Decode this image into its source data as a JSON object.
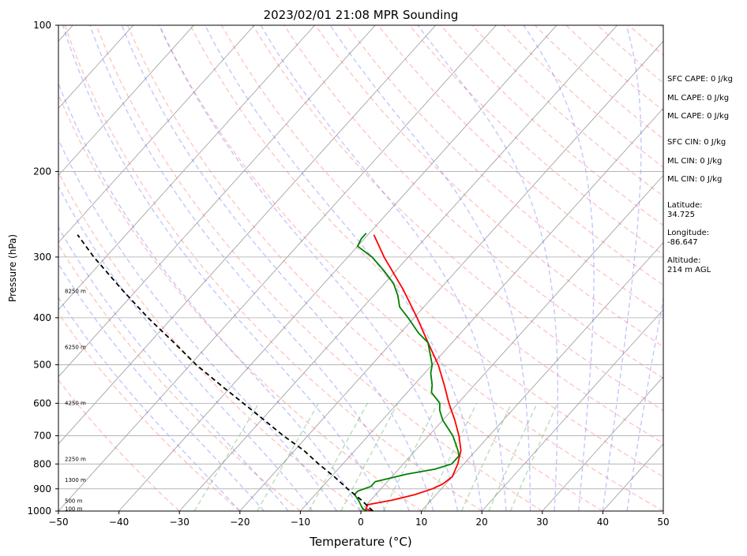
{
  "chart_data": {
    "type": "line",
    "title": "2023/02/01 21:08 MPR Sounding",
    "xlabel": "Temperature (°C)",
    "ylabel": "Pressure (hPa)",
    "xlim": [
      -50,
      50
    ],
    "ylim": [
      1000,
      100
    ],
    "y_scale": "log",
    "x_ticks": [
      -50,
      -40,
      -30,
      -20,
      -10,
      0,
      10,
      20,
      30,
      40,
      50
    ],
    "y_ticks": [
      100,
      200,
      300,
      400,
      500,
      600,
      700,
      800,
      900,
      1000
    ],
    "grid": true,
    "skew_t": true,
    "height_labels": [
      {
        "pressure": 353,
        "label": "8250 m"
      },
      {
        "pressure": 460,
        "label": "6250 m"
      },
      {
        "pressure": 600,
        "label": "4250 m"
      },
      {
        "pressure": 783,
        "label": "2250 m"
      },
      {
        "pressure": 865,
        "label": "1300 m"
      },
      {
        "pressure": 955,
        "label": "500 m"
      },
      {
        "pressure": 990,
        "label": "100 m"
      }
    ],
    "series": [
      {
        "kind": "temperature",
        "color": "#ff0000",
        "points": [
          [
            1000,
            2.0
          ],
          [
            990,
            0.5
          ],
          [
            970,
            0.2
          ],
          [
            950,
            3.5
          ],
          [
            925,
            6.5
          ],
          [
            900,
            8.5
          ],
          [
            880,
            9.5
          ],
          [
            850,
            10.0
          ],
          [
            800,
            9.0
          ],
          [
            750,
            7.5
          ],
          [
            700,
            5.0
          ],
          [
            650,
            2.0
          ],
          [
            600,
            -1.5
          ],
          [
            550,
            -5.0
          ],
          [
            500,
            -9.0
          ],
          [
            450,
            -14.0
          ],
          [
            400,
            -19.5
          ],
          [
            350,
            -26.0
          ],
          [
            300,
            -34.0
          ],
          [
            270,
            -39.0
          ]
        ]
      },
      {
        "kind": "dewpoint",
        "color": "#008000",
        "points": [
          [
            1000,
            1.0
          ],
          [
            990,
            0.0
          ],
          [
            970,
            -1.0
          ],
          [
            950,
            -2.0
          ],
          [
            925,
            -3.5
          ],
          [
            910,
            -3.5
          ],
          [
            890,
            -2.0
          ],
          [
            870,
            -2.0
          ],
          [
            840,
            2.0
          ],
          [
            820,
            6.0
          ],
          [
            800,
            8.0
          ],
          [
            770,
            8.0
          ],
          [
            750,
            7.0
          ],
          [
            700,
            4.0
          ],
          [
            650,
            0.0
          ],
          [
            620,
            -2.0
          ],
          [
            600,
            -3.0
          ],
          [
            570,
            -6.0
          ],
          [
            550,
            -7.0
          ],
          [
            520,
            -9.0
          ],
          [
            500,
            -10.0
          ],
          [
            450,
            -14.0
          ],
          [
            430,
            -17.0
          ],
          [
            400,
            -21.0
          ],
          [
            380,
            -24.0
          ],
          [
            360,
            -26.0
          ],
          [
            340,
            -28.5
          ],
          [
            320,
            -32.0
          ],
          [
            300,
            -36.0
          ],
          [
            285,
            -40.0
          ],
          [
            275,
            -40.5
          ],
          [
            268,
            -40.5
          ]
        ]
      },
      {
        "kind": "parcel",
        "color": "#000000",
        "points": [
          [
            1000,
            2.0
          ],
          [
            950,
            -1.5
          ],
          [
            900,
            -5.5
          ],
          [
            850,
            -9.5
          ],
          [
            800,
            -14.0
          ],
          [
            750,
            -18.5
          ],
          [
            700,
            -24.0
          ],
          [
            650,
            -29.5
          ],
          [
            600,
            -35.5
          ],
          [
            550,
            -42.0
          ],
          [
            500,
            -49.0
          ],
          [
            450,
            -56.0
          ],
          [
            400,
            -64.0
          ],
          [
            350,
            -72.5
          ],
          [
            300,
            -82.0
          ],
          [
            270,
            -88.0
          ]
        ]
      }
    ]
  },
  "info": {
    "sfc_cape": "SFC CAPE: 0 J/kg",
    "ml_cape_1": "ML CAPE: 0 J/kg",
    "ml_cape_2": "ML CAPE: 0 J/kg",
    "sfc_cin": "SFC CIN: 0 J/kg",
    "ml_cin_1": "ML CIN: 0 J/kg",
    "ml_cin_2": "ML CIN: 0 J/kg",
    "latitude_label": "Latitude:",
    "latitude_value": "34.725",
    "longitude_label": "Longitude:",
    "longitude_value": "-86.647",
    "altitude_label": "Altitude:",
    "altitude_value": "214 m AGL"
  }
}
